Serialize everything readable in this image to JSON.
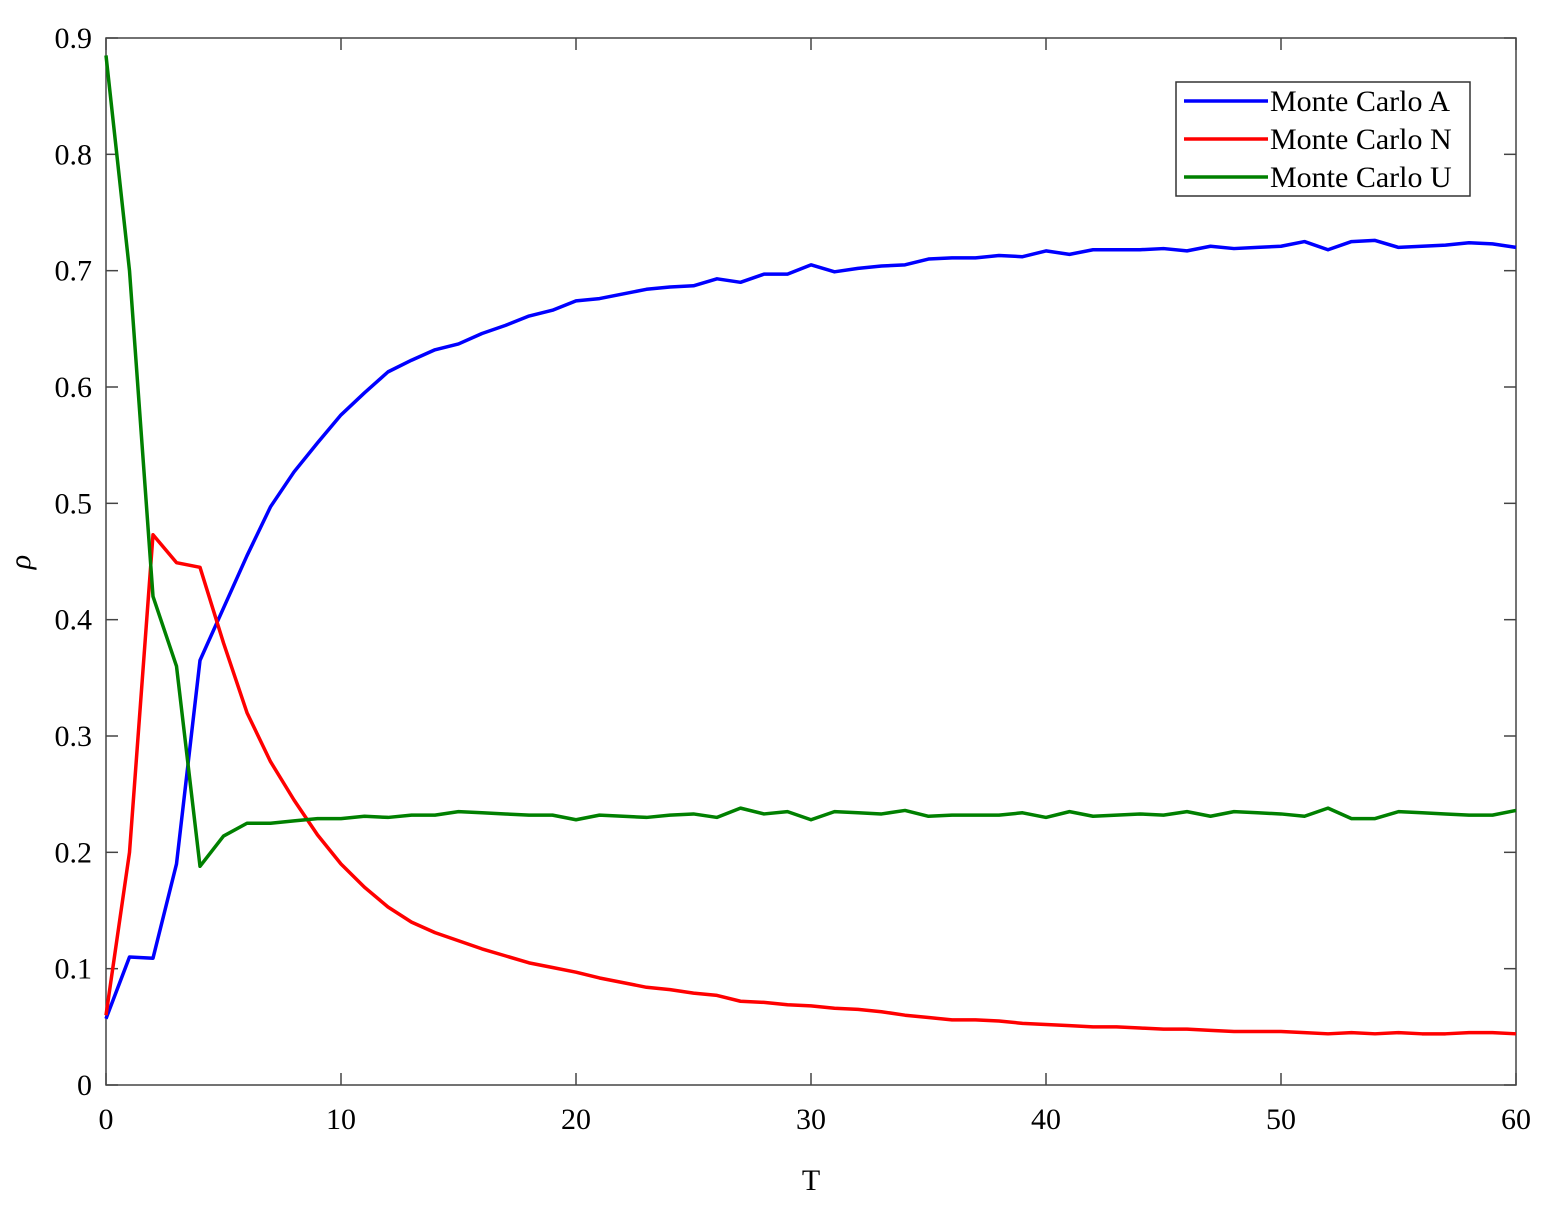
{
  "chart_data": {
    "type": "line",
    "title": "",
    "xlabel": "T",
    "ylabel": "ρ",
    "xlim": [
      0,
      60
    ],
    "ylim": [
      0,
      0.9
    ],
    "xticks": [
      "0",
      "10",
      "20",
      "30",
      "40",
      "50",
      "60"
    ],
    "yticks": [
      "0",
      "0.1",
      "0.2",
      "0.3",
      "0.4",
      "0.5",
      "0.6",
      "0.7",
      "0.8",
      "0.9"
    ],
    "grid": false,
    "legend_position": "top-right",
    "x": [
      0,
      1,
      2,
      3,
      4,
      5,
      6,
      7,
      8,
      9,
      10,
      11,
      12,
      13,
      14,
      15,
      16,
      17,
      18,
      19,
      20,
      21,
      22,
      23,
      24,
      25,
      26,
      27,
      28,
      29,
      30,
      31,
      32,
      33,
      34,
      35,
      36,
      37,
      38,
      39,
      40,
      41,
      42,
      43,
      44,
      45,
      46,
      47,
      48,
      49,
      50,
      51,
      52,
      53,
      54,
      55,
      56,
      57,
      58,
      59,
      60
    ],
    "series": [
      {
        "name": "Monte Carlo A",
        "color": "#0000ff",
        "values": [
          0.057,
          0.11,
          0.109,
          0.19,
          0.365,
          0.41,
          0.455,
          0.497,
          0.527,
          0.552,
          0.576,
          0.595,
          0.613,
          0.623,
          0.632,
          0.637,
          0.646,
          0.653,
          0.661,
          0.666,
          0.674,
          0.676,
          0.68,
          0.684,
          0.686,
          0.687,
          0.693,
          0.69,
          0.697,
          0.697,
          0.705,
          0.699,
          0.702,
          0.704,
          0.705,
          0.71,
          0.711,
          0.711,
          0.713,
          0.712,
          0.717,
          0.714,
          0.718,
          0.718,
          0.718,
          0.719,
          0.717,
          0.721,
          0.719,
          0.72,
          0.721,
          0.725,
          0.718,
          0.725,
          0.726,
          0.72,
          0.721,
          0.722,
          0.724,
          0.723,
          0.72
        ]
      },
      {
        "name": "Monte Carlo N",
        "color": "#ff0000",
        "values": [
          0.06,
          0.2,
          0.473,
          0.449,
          0.445,
          0.38,
          0.32,
          0.278,
          0.245,
          0.215,
          0.19,
          0.17,
          0.153,
          0.14,
          0.131,
          0.124,
          0.117,
          0.111,
          0.105,
          0.101,
          0.097,
          0.092,
          0.088,
          0.084,
          0.082,
          0.079,
          0.077,
          0.072,
          0.071,
          0.069,
          0.068,
          0.066,
          0.065,
          0.063,
          0.06,
          0.058,
          0.056,
          0.056,
          0.055,
          0.053,
          0.052,
          0.051,
          0.05,
          0.05,
          0.049,
          0.048,
          0.048,
          0.047,
          0.046,
          0.046,
          0.046,
          0.045,
          0.044,
          0.045,
          0.044,
          0.045,
          0.044,
          0.044,
          0.045,
          0.045,
          0.044
        ]
      },
      {
        "name": "Monte Carlo U",
        "color": "#008000",
        "values": [
          0.885,
          0.7,
          0.42,
          0.36,
          0.188,
          0.214,
          0.225,
          0.225,
          0.227,
          0.229,
          0.229,
          0.231,
          0.23,
          0.232,
          0.232,
          0.235,
          0.234,
          0.233,
          0.232,
          0.232,
          0.228,
          0.232,
          0.231,
          0.23,
          0.232,
          0.233,
          0.23,
          0.238,
          0.233,
          0.235,
          0.228,
          0.235,
          0.234,
          0.233,
          0.236,
          0.231,
          0.232,
          0.232,
          0.232,
          0.234,
          0.23,
          0.235,
          0.231,
          0.232,
          0.233,
          0.232,
          0.235,
          0.231,
          0.235,
          0.234,
          0.233,
          0.231,
          0.238,
          0.229,
          0.229,
          0.235,
          0.234,
          0.233,
          0.232,
          0.232,
          0.236
        ]
      }
    ]
  }
}
